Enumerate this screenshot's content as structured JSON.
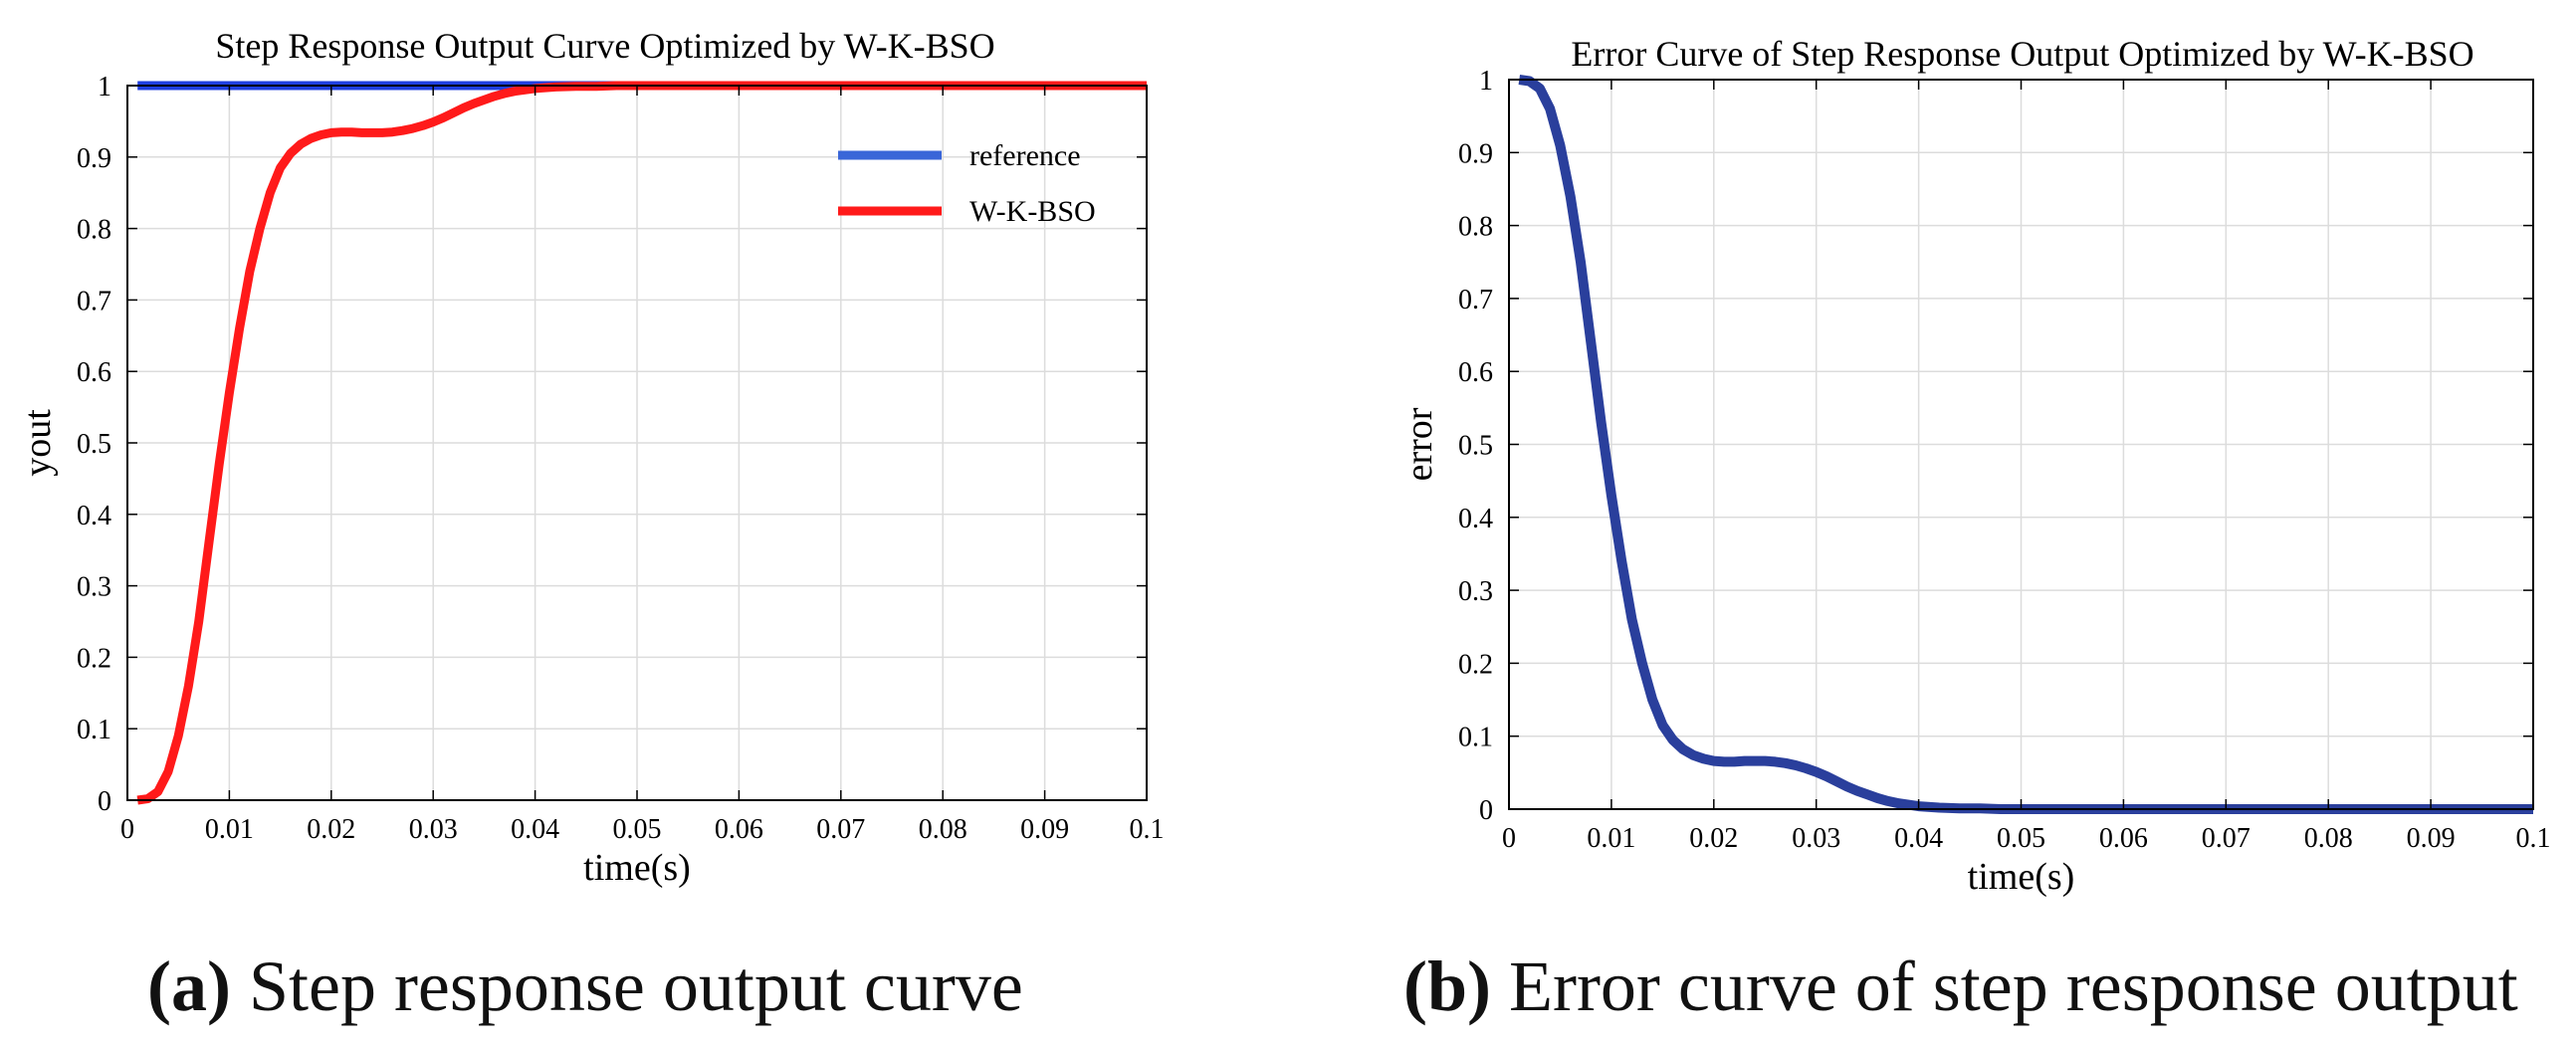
{
  "chart_data": [
    {
      "type": "line",
      "title": "Step Response Output Curve Optimized by W-K-BSO",
      "xlabel": "time(s)",
      "ylabel": "yout",
      "xlim": [
        0,
        0.1
      ],
      "ylim": [
        0,
        1
      ],
      "grid": true,
      "legend_position": "top-right",
      "x_ticks": [
        "0",
        "0.01",
        "0.02",
        "0.03",
        "0.04",
        "0.05",
        "0.06",
        "0.07",
        "0.08",
        "0.09",
        "0.1"
      ],
      "y_ticks": [
        "0",
        "0.1",
        "0.2",
        "0.3",
        "0.4",
        "0.5",
        "0.6",
        "0.7",
        "0.8",
        "0.9",
        "1"
      ],
      "series": [
        {
          "name": "reference",
          "color": "#1f3fe0",
          "legend_color": "#3a66d8",
          "x": [
            0.001,
            0.1
          ],
          "y": [
            1,
            1
          ]
        },
        {
          "name": "W-K-BSO",
          "color": "#ff1a1a",
          "x": [
            0.001,
            0.002,
            0.003,
            0.004,
            0.005,
            0.006,
            0.007,
            0.008,
            0.009,
            0.01,
            0.011,
            0.012,
            0.013,
            0.014,
            0.015,
            0.016,
            0.017,
            0.018,
            0.019,
            0.02,
            0.021,
            0.022,
            0.023,
            0.024,
            0.025,
            0.026,
            0.027,
            0.028,
            0.029,
            0.03,
            0.031,
            0.032,
            0.033,
            0.034,
            0.035,
            0.036,
            0.037,
            0.038,
            0.039,
            0.04,
            0.042,
            0.044,
            0.046,
            0.048,
            0.05,
            0.055,
            0.06,
            0.07,
            0.08,
            0.09,
            0.1
          ],
          "y": [
            0,
            0.002,
            0.012,
            0.04,
            0.09,
            0.16,
            0.25,
            0.36,
            0.47,
            0.57,
            0.66,
            0.74,
            0.8,
            0.85,
            0.885,
            0.905,
            0.918,
            0.926,
            0.931,
            0.934,
            0.935,
            0.935,
            0.934,
            0.934,
            0.934,
            0.935,
            0.937,
            0.94,
            0.944,
            0.949,
            0.955,
            0.962,
            0.969,
            0.975,
            0.98,
            0.985,
            0.989,
            0.992,
            0.994,
            0.996,
            0.998,
            0.999,
            0.999,
            1.0,
            1.0,
            1.0,
            1.0,
            1.0,
            1.0,
            1.0,
            1.0
          ]
        }
      ]
    },
    {
      "type": "line",
      "title": "Error Curve of Step Response Output Optimized by W-K-BSO",
      "xlabel": "time(s)",
      "ylabel": "error",
      "xlim": [
        0,
        0.1
      ],
      "ylim": [
        0,
        1
      ],
      "grid": true,
      "x_ticks": [
        "0",
        "0.01",
        "0.02",
        "0.03",
        "0.04",
        "0.05",
        "0.06",
        "0.07",
        "0.08",
        "0.09",
        "0.1"
      ],
      "y_ticks": [
        "0",
        "0.1",
        "0.2",
        "0.3",
        "0.4",
        "0.5",
        "0.6",
        "0.7",
        "0.8",
        "0.9",
        "1"
      ],
      "series": [
        {
          "name": "error",
          "color": "#2a3f9c",
          "x": [
            0.001,
            0.002,
            0.003,
            0.004,
            0.005,
            0.006,
            0.007,
            0.008,
            0.009,
            0.01,
            0.011,
            0.012,
            0.013,
            0.014,
            0.015,
            0.016,
            0.017,
            0.018,
            0.019,
            0.02,
            0.021,
            0.022,
            0.023,
            0.024,
            0.025,
            0.026,
            0.027,
            0.028,
            0.029,
            0.03,
            0.031,
            0.032,
            0.033,
            0.034,
            0.035,
            0.036,
            0.037,
            0.038,
            0.039,
            0.04,
            0.042,
            0.044,
            0.046,
            0.048,
            0.05,
            0.055,
            0.06,
            0.07,
            0.08,
            0.09,
            0.1
          ],
          "y": [
            1.0,
            0.998,
            0.988,
            0.96,
            0.91,
            0.84,
            0.75,
            0.64,
            0.53,
            0.43,
            0.34,
            0.26,
            0.2,
            0.15,
            0.115,
            0.095,
            0.082,
            0.074,
            0.069,
            0.066,
            0.065,
            0.065,
            0.066,
            0.066,
            0.066,
            0.065,
            0.063,
            0.06,
            0.056,
            0.051,
            0.045,
            0.038,
            0.031,
            0.025,
            0.02,
            0.015,
            0.011,
            0.008,
            0.006,
            0.004,
            0.002,
            0.001,
            0.001,
            0.0,
            0.0,
            0.0,
            0.0,
            0.0,
            0.0,
            0.0,
            0.0
          ]
        }
      ]
    }
  ],
  "captions": [
    {
      "label": "(a)",
      "text": "Step response output curve"
    },
    {
      "label": "(b)",
      "text": "Error curve of step response output"
    }
  ]
}
